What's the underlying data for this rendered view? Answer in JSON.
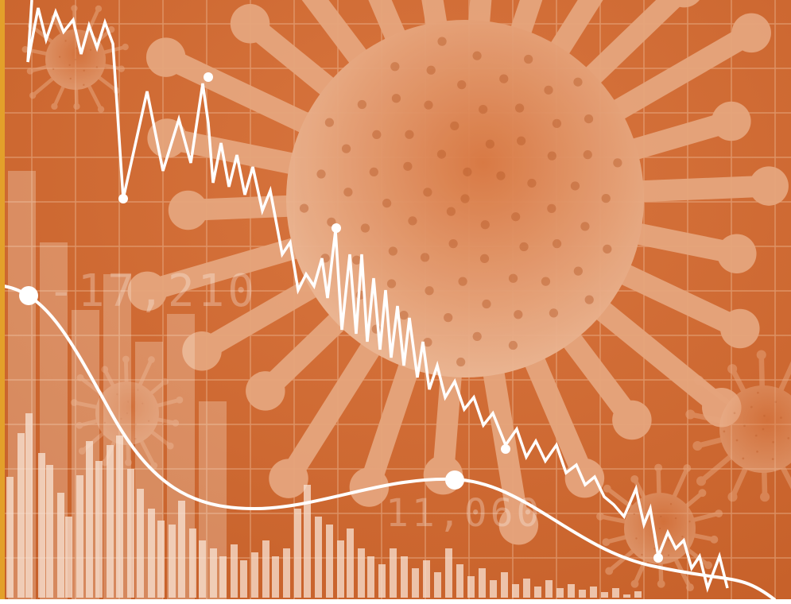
{
  "image": {
    "overlay_numbers": [
      "-17,210",
      "11,060"
    ]
  },
  "colors": {
    "background": "#d9763f",
    "background_dark": "#c7612a",
    "virus": "#e6a57d",
    "virus_shadow": "#b65b2a",
    "grid_line": "#f1c4a2",
    "bars": "#f8e3d4",
    "lines": "#ffffff",
    "left_frame": "#e3a02a"
  },
  "icons": [
    "virus-icon",
    "small-virus-icon"
  ]
}
